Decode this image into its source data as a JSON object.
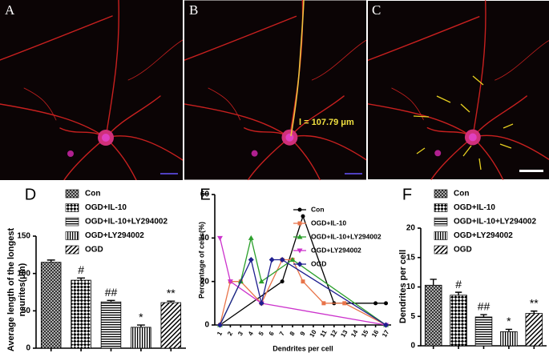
{
  "panels": [
    {
      "label": "A"
    },
    {
      "label": "B",
      "annotation": "l = 107.79 μm"
    },
    {
      "label": "C"
    }
  ],
  "chart_data": [
    {
      "panel": "D",
      "type": "bar",
      "ylabel": [
        "Average length of the longest",
        "neurites(μm)"
      ],
      "categories": [
        "Con",
        "OGD+IL-10",
        "OGD+IL-10+LY294002",
        "OGD+LY294002",
        "OGD"
      ],
      "values": [
        115,
        91,
        62,
        28,
        61
      ],
      "errors": [
        3,
        3,
        2,
        3,
        2
      ],
      "annotations": [
        null,
        "#",
        "##",
        "*",
        "**"
      ],
      "patterns": [
        "crosshatch",
        "checker",
        "horizontal",
        "vertical",
        "diagonal"
      ],
      "color": "#000000",
      "ylim": [
        0,
        150
      ],
      "yticks": [
        0,
        50,
        100,
        150
      ]
    },
    {
      "panel": "E",
      "type": "line",
      "ylabel": "Percentage of cells(%)",
      "xlabel": "Dendrites per cell",
      "xlim": [
        0.5,
        17.5
      ],
      "xticks": [
        1,
        2,
        3,
        4,
        5,
        6,
        7,
        8,
        9,
        10,
        11,
        12,
        13,
        14,
        15,
        16,
        17
      ],
      "ylim": [
        0,
        60
      ],
      "yticks": [
        0,
        20,
        40,
        60
      ],
      "series": [
        {
          "name": "Con",
          "color": "#000000",
          "marker": "circle",
          "x": [
            1,
            7,
            9,
            12,
            16,
            17
          ],
          "values": [
            0,
            20,
            50,
            10,
            10,
            10
          ]
        },
        {
          "name": "OGD+IL-10",
          "color": "#e8744a",
          "marker": "square",
          "x": [
            1,
            2,
            3,
            5,
            7,
            8,
            9,
            11,
            13,
            17
          ],
          "values": [
            0,
            20,
            20,
            10,
            30,
            30,
            20,
            10,
            10,
            0
          ]
        },
        {
          "name": "OGD+IL-10+LY294002",
          "color": "#2ca02c",
          "marker": "triangle",
          "x": [
            1,
            3,
            4,
            5,
            8,
            17
          ],
          "values": [
            0,
            20,
            40,
            20,
            30,
            0
          ]
        },
        {
          "name": "OGD+LY294002",
          "color": "#cc33cc",
          "marker": "triangle-down",
          "x": [
            1,
            2,
            5,
            17
          ],
          "values": [
            40,
            20,
            10,
            0
          ]
        },
        {
          "name": "OGD",
          "color": "#1f1f8f",
          "marker": "diamond",
          "x": [
            1,
            4,
            5,
            6,
            7,
            17
          ],
          "values": [
            0,
            30,
            10,
            30,
            30,
            0
          ]
        }
      ]
    },
    {
      "panel": "F",
      "type": "bar",
      "ylabel": [
        "Dendrites per cell"
      ],
      "categories": [
        "Con",
        "OGD+IL-10",
        "OGD+IL-10+LY294002",
        "OGD+LY294002",
        "OGD"
      ],
      "values": [
        10.3,
        8.6,
        4.9,
        2.4,
        5.5
      ],
      "errors": [
        1.0,
        0.5,
        0.4,
        0.4,
        0.4
      ],
      "annotations": [
        null,
        "#",
        "##",
        "*",
        "**"
      ],
      "patterns": [
        "crosshatch",
        "checker",
        "horizontal",
        "vertical",
        "diagonal"
      ],
      "color": "#000000",
      "ylim": [
        0,
        20
      ],
      "yticks": [
        0,
        5,
        10,
        15,
        20
      ]
    }
  ]
}
